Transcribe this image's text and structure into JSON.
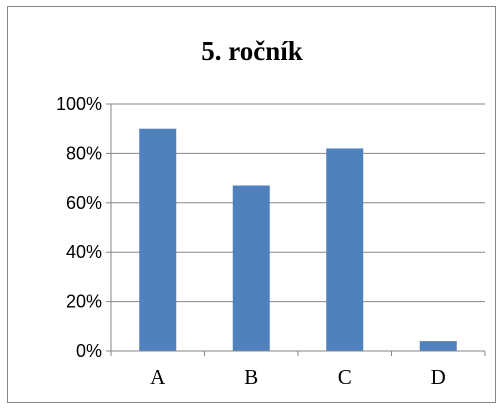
{
  "chart_data": {
    "type": "bar",
    "title": "5. ročník",
    "categories": [
      "A",
      "B",
      "C",
      "D"
    ],
    "values": [
      90,
      67,
      82,
      4
    ],
    "ylim": [
      0,
      100
    ],
    "yticks": [
      0,
      20,
      40,
      60,
      80,
      100
    ],
    "ytick_labels": [
      "0%",
      "20%",
      "40%",
      "60%",
      "80%",
      "100%"
    ],
    "xlabel": "",
    "ylabel": "",
    "grid": true,
    "legend": "none",
    "colors": {
      "bar": "#4f81bd",
      "grid": "#868686",
      "axis": "#868686"
    }
  }
}
